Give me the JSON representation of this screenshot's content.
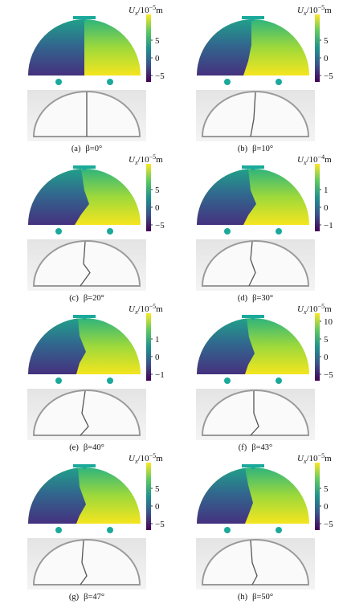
{
  "panels": [
    {
      "label": "(a)",
      "beta": "β=0°",
      "colorbar": {
        "symbol": "U",
        "subscript": "x",
        "unit": "/10",
        "exponent": "−5",
        "suffix": "m",
        "ticks": [
          "5",
          "0",
          "−5"
        ]
      }
    },
    {
      "label": "(b)",
      "beta": "β=10°",
      "colorbar": {
        "symbol": "U",
        "subscript": "x",
        "unit": "/10",
        "exponent": "−5",
        "suffix": "m",
        "ticks": [
          "5",
          "0",
          "−5"
        ]
      }
    },
    {
      "label": "(c)",
      "beta": "β=20°",
      "colorbar": {
        "symbol": "U",
        "subscript": "x",
        "unit": "/10",
        "exponent": "−5",
        "suffix": "m",
        "ticks": [
          "5",
          "0",
          "−5"
        ]
      }
    },
    {
      "label": "(d)",
      "beta": "β=30°",
      "colorbar": {
        "symbol": "U",
        "subscript": "x",
        "unit": "/10",
        "exponent": "−4",
        "suffix": "m",
        "ticks": [
          "1",
          "0",
          "−1"
        ]
      }
    },
    {
      "label": "(e)",
      "beta": "β=40°",
      "colorbar": {
        "symbol": "U",
        "subscript": "x",
        "unit": "/10",
        "exponent": "−5",
        "suffix": "m",
        "ticks": [
          "1",
          "0",
          "−1"
        ]
      }
    },
    {
      "label": "(f)",
      "beta": "β=43°",
      "colorbar": {
        "symbol": "U",
        "subscript": "x",
        "unit": "/10",
        "exponent": "−5",
        "suffix": "m",
        "ticks": [
          "10",
          "5",
          "0",
          "−5"
        ]
      }
    },
    {
      "label": "(g)",
      "beta": "β=47°",
      "colorbar": {
        "symbol": "U",
        "subscript": "x",
        "unit": "/10",
        "exponent": "−5",
        "suffix": "m",
        "ticks": [
          "5",
          "0",
          "−5"
        ]
      }
    },
    {
      "label": "(h)",
      "beta": "β=50°",
      "colorbar": {
        "symbol": "U",
        "subscript": "x",
        "unit": "/10",
        "exponent": "−5",
        "suffix": "m",
        "ticks": [
          "5",
          "0",
          "−5"
        ]
      }
    }
  ]
}
